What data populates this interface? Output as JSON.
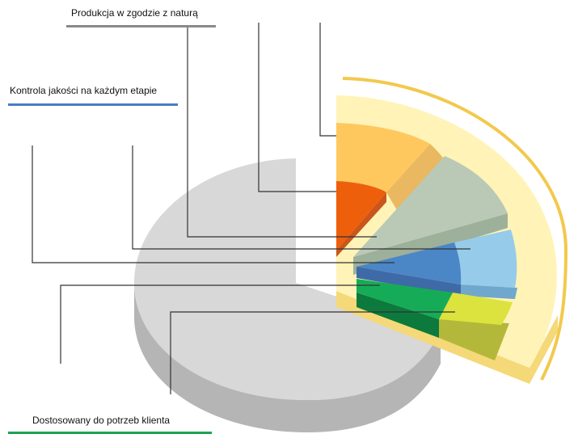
{
  "labels": {
    "natural": "Produkcja w zgodzie z naturą",
    "quality": "Kontrola jakości na każdym etapie",
    "client": "Dostosowany do potrzeb klienta"
  },
  "colors": {
    "natural_bar": "#8a8a8a",
    "quality_bar": "#4a7cc4",
    "client_bar": "#1aa653",
    "grey_pie": "#d8d8d8",
    "grey_pie_side": "#b5b5b5",
    "frame_light": "#fff3b8",
    "frame_dark": "#f5d978",
    "arc": "#f2c94c",
    "orange": "#ffc85e",
    "dark_orange": "#ee5f0c",
    "sage": "#b9c9b5",
    "sky": "#96ccea",
    "blue": "#4b86c7",
    "lime": "#dce33e",
    "green": "#16ac57",
    "dark_green": "#0b7a3c",
    "leader": "#333333"
  }
}
